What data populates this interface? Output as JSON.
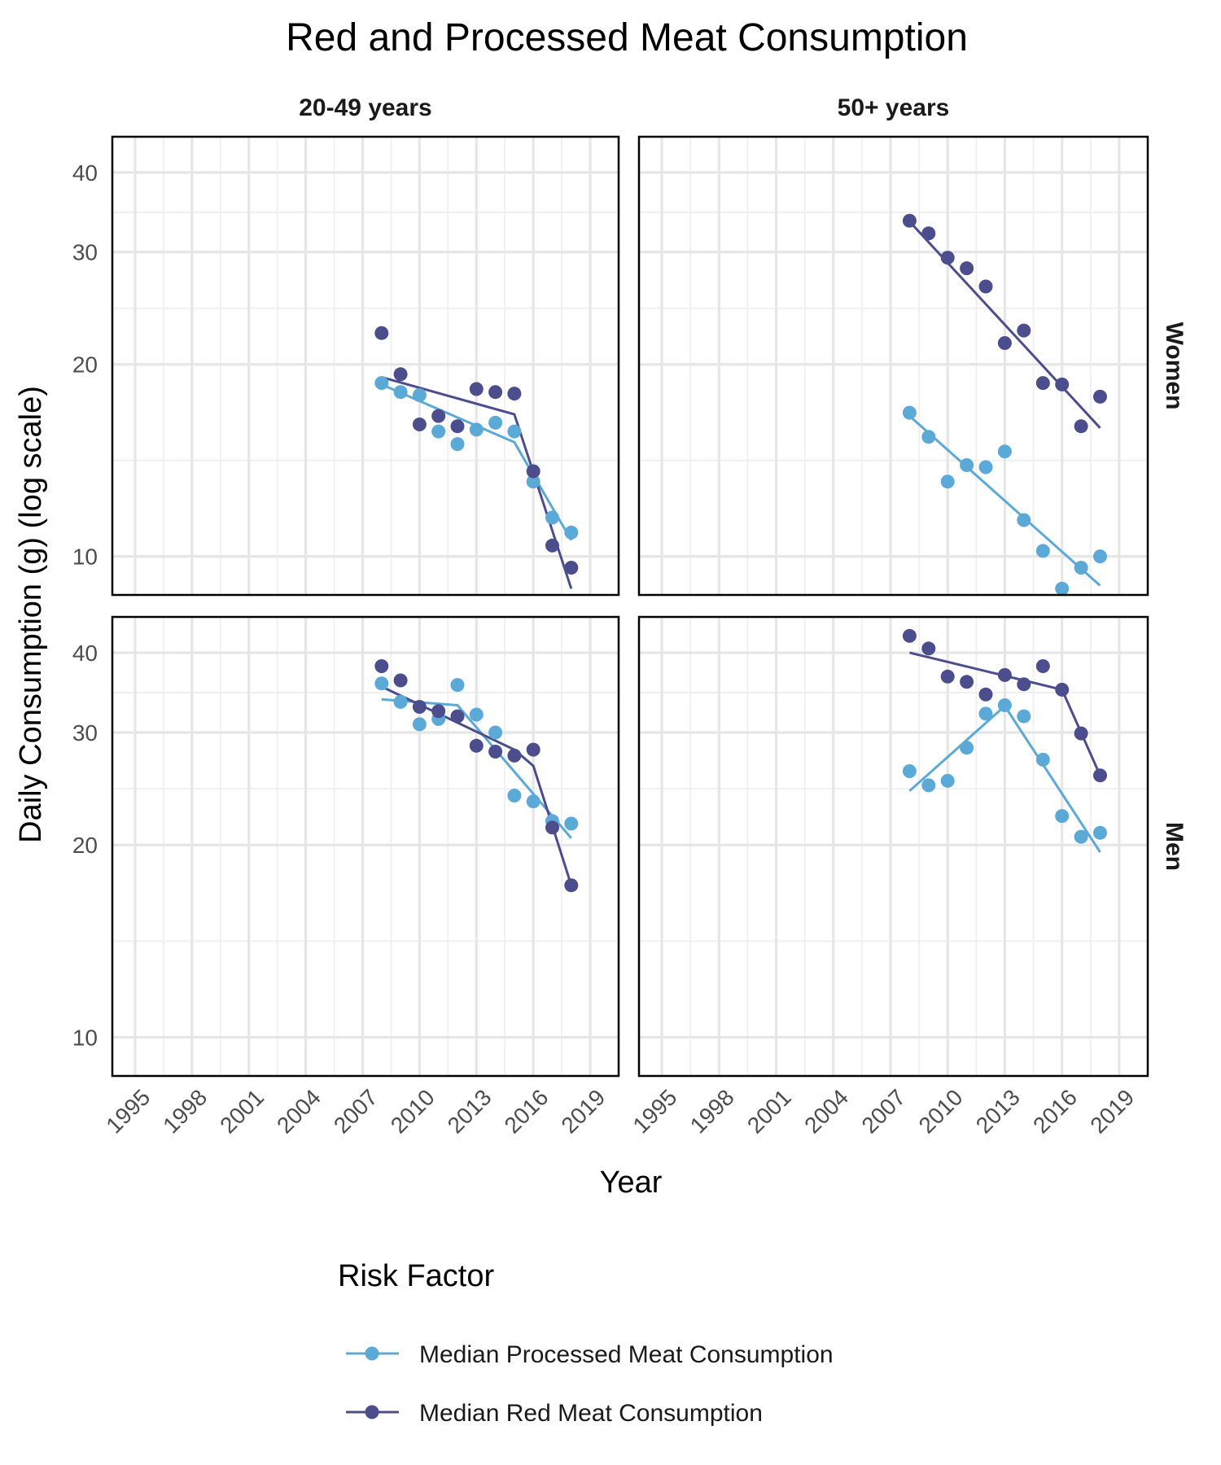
{
  "chart_data": {
    "type": "line",
    "title": "Red and Processed Meat Consumption",
    "xlabel": "Year",
    "ylabel": "Daily Consumption (g) (log scale)",
    "xlim": [
      1993.8,
      2020.5
    ],
    "x_ticks": [
      1995,
      1998,
      2001,
      2004,
      2007,
      2010,
      2013,
      2016,
      2019
    ],
    "y_scale": "log",
    "y_ticks": [
      10,
      20,
      30,
      40
    ],
    "ylim_rows": {
      "Women": [
        8.7,
        45.5
      ],
      "Men": [
        8.7,
        45.5
      ]
    },
    "grid": true,
    "facet_cols": [
      "20-49 years",
      "50+ years"
    ],
    "facet_rows": [
      "Women",
      "Men"
    ],
    "legend": {
      "title": "Risk Factor",
      "position": "bottom",
      "entries": [
        {
          "key": "processed",
          "label": "Median Processed Meat Consumption",
          "color": "#5aa9d6"
        },
        {
          "key": "red",
          "label": "Median Red Meat Consumption",
          "color": "#4b4d8c"
        }
      ]
    },
    "panels": [
      {
        "col": "20-49 years",
        "row": "Women",
        "series": [
          {
            "key": "processed",
            "points": [
              [
                2008,
                18.7
              ],
              [
                2009,
                18.1
              ],
              [
                2010,
                17.9
              ],
              [
                2011,
                15.7
              ],
              [
                2012,
                15.0
              ],
              [
                2013,
                15.8
              ],
              [
                2014,
                16.2
              ],
              [
                2015,
                15.7
              ],
              [
                2016,
                13.1
              ],
              [
                2017,
                11.5
              ],
              [
                2018,
                10.9
              ]
            ],
            "trend": [
              [
                2008,
                18.6
              ],
              [
                2015,
                15.1
              ],
              [
                2018,
                10.6
              ]
            ]
          },
          {
            "key": "red",
            "points": [
              [
                2008,
                22.4
              ],
              [
                2009,
                19.3
              ],
              [
                2010,
                16.1
              ],
              [
                2011,
                16.6
              ],
              [
                2012,
                16.0
              ],
              [
                2013,
                18.3
              ],
              [
                2014,
                18.1
              ],
              [
                2015,
                18.0
              ],
              [
                2016,
                13.6
              ],
              [
                2017,
                10.4
              ],
              [
                2018,
                9.6
              ]
            ],
            "trend": [
              [
                2008,
                19.1
              ],
              [
                2015,
                16.7
              ],
              [
                2018,
                8.9
              ]
            ]
          }
        ]
      },
      {
        "col": "50+ years",
        "row": "Women",
        "series": [
          {
            "key": "processed",
            "points": [
              [
                2008,
                16.8
              ],
              [
                2009,
                15.4
              ],
              [
                2010,
                13.1
              ],
              [
                2011,
                13.9
              ],
              [
                2012,
                13.8
              ],
              [
                2013,
                14.6
              ],
              [
                2014,
                11.4
              ],
              [
                2015,
                10.2
              ],
              [
                2016,
                8.9
              ],
              [
                2017,
                9.6
              ],
              [
                2018,
                10.0
              ]
            ],
            "trend": [
              [
                2008,
                16.6
              ],
              [
                2018,
                9.0
              ]
            ]
          },
          {
            "key": "red",
            "points": [
              [
                2008,
                33.6
              ],
              [
                2009,
                32.1
              ],
              [
                2010,
                29.4
              ],
              [
                2011,
                28.3
              ],
              [
                2012,
                26.5
              ],
              [
                2013,
                21.6
              ],
              [
                2014,
                22.6
              ],
              [
                2015,
                18.7
              ],
              [
                2016,
                18.6
              ],
              [
                2017,
                16.0
              ],
              [
                2018,
                17.8
              ]
            ],
            "trend": [
              [
                2008,
                33.5
              ],
              [
                2018,
                15.9
              ]
            ]
          }
        ]
      },
      {
        "col": "20-49 years",
        "row": "Men",
        "series": [
          {
            "key": "processed",
            "points": [
              [
                2008,
                35.8
              ],
              [
                2009,
                33.5
              ],
              [
                2010,
                30.9
              ],
              [
                2011,
                31.5
              ],
              [
                2012,
                35.6
              ],
              [
                2013,
                32.0
              ],
              [
                2014,
                30.0
              ],
              [
                2015,
                23.9
              ],
              [
                2016,
                23.4
              ],
              [
                2017,
                21.8
              ],
              [
                2018,
                21.6
              ]
            ],
            "trend": [
              [
                2008,
                33.8
              ],
              [
                2012,
                33.1
              ],
              [
                2018,
                20.5
              ]
            ]
          },
          {
            "key": "red",
            "points": [
              [
                2008,
                38.1
              ],
              [
                2009,
                36.2
              ],
              [
                2010,
                32.9
              ],
              [
                2011,
                32.4
              ],
              [
                2012,
                31.8
              ],
              [
                2013,
                28.6
              ],
              [
                2014,
                28.0
              ],
              [
                2015,
                27.6
              ],
              [
                2016,
                28.2
              ],
              [
                2017,
                21.3
              ],
              [
                2018,
                17.3
              ]
            ],
            "trend": [
              [
                2008,
                35.4
              ],
              [
                2015,
                28.2
              ],
              [
                2016,
                26.6
              ],
              [
                2018,
                17.3
              ]
            ]
          }
        ]
      },
      {
        "col": "50+ years",
        "row": "Men",
        "series": [
          {
            "key": "processed",
            "points": [
              [
                2008,
                26.1
              ],
              [
                2009,
                24.8
              ],
              [
                2010,
                25.2
              ],
              [
                2011,
                28.4
              ],
              [
                2012,
                32.1
              ],
              [
                2013,
                33.1
              ],
              [
                2014,
                31.8
              ],
              [
                2015,
                27.2
              ],
              [
                2016,
                22.2
              ],
              [
                2017,
                20.6
              ],
              [
                2018,
                20.9
              ]
            ],
            "trend": [
              [
                2008,
                24.3
              ],
              [
                2013,
                33.0
              ],
              [
                2018,
                19.5
              ]
            ]
          },
          {
            "key": "red",
            "points": [
              [
                2008,
                42.5
              ],
              [
                2009,
                40.6
              ],
              [
                2010,
                36.7
              ],
              [
                2011,
                36.0
              ],
              [
                2012,
                34.4
              ],
              [
                2013,
                36.9
              ],
              [
                2014,
                35.7
              ],
              [
                2015,
                38.1
              ],
              [
                2016,
                35.0
              ],
              [
                2017,
                29.9
              ],
              [
                2018,
                25.7
              ]
            ],
            "trend": [
              [
                2008,
                40.0
              ],
              [
                2016,
                35.0
              ],
              [
                2018,
                25.7
              ]
            ]
          }
        ]
      }
    ]
  }
}
